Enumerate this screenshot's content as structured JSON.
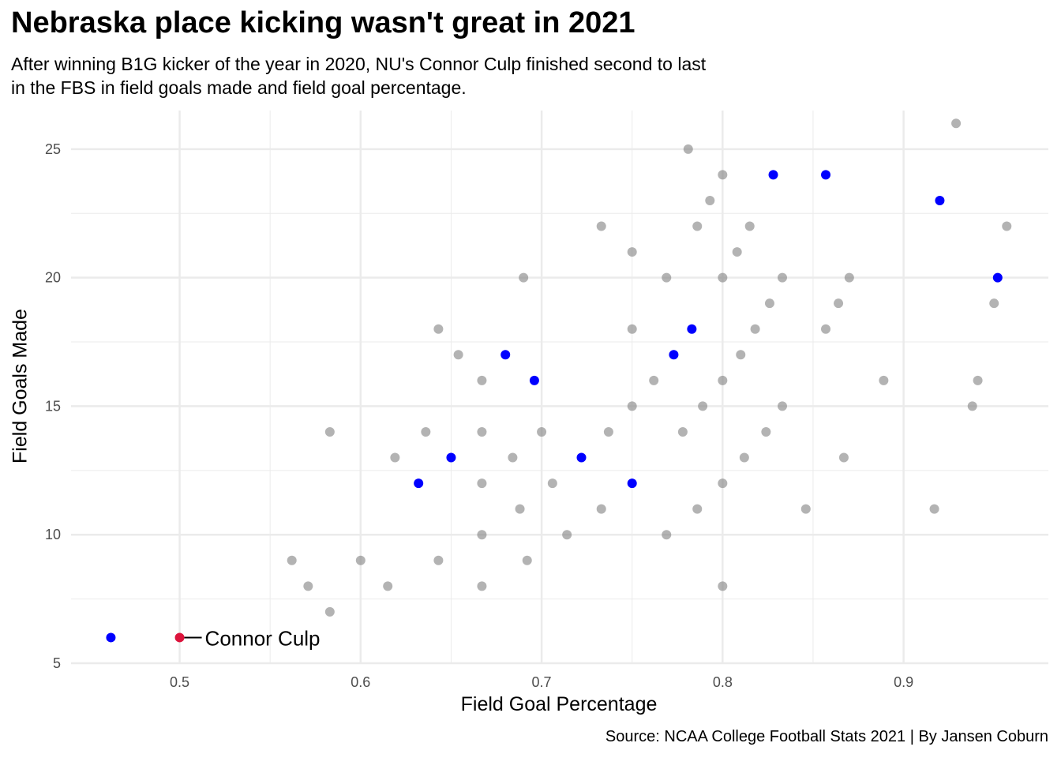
{
  "chart_data": {
    "type": "scatter",
    "title": "Nebraska place kicking wasn't great in 2021",
    "subtitle": "After winning B1G kicker of the year in 2020, NU's Connor Culp finished second to last\nin the FBS in field goals made and field goal percentage.",
    "caption": "Source: NCAA College Football Stats 2021 | By Jansen Coburn",
    "xlabel": "Field Goal Percentage",
    "ylabel": "Field Goals Made",
    "xlim": [
      0.44,
      0.98
    ],
    "ylim": [
      5,
      26.5
    ],
    "xticks": [
      0.5,
      0.6,
      0.7,
      0.8,
      0.9
    ],
    "xtick_labels": [
      "0.5",
      "0.6",
      "0.7",
      "0.8",
      "0.9"
    ],
    "yticks": [
      5,
      10,
      15,
      20,
      25
    ],
    "ytick_labels": [
      "5",
      "10",
      "15",
      "20",
      "25"
    ],
    "grid": true,
    "colors": {
      "other": "#808080",
      "b1g": "#0000ff",
      "highlight": "#dc143c",
      "grid": "#ebebeb"
    },
    "series": [
      {
        "group": "other",
        "points": [
          [
            0.929,
            26
          ],
          [
            0.781,
            25
          ],
          [
            0.8,
            24
          ],
          [
            0.793,
            23
          ],
          [
            0.733,
            22
          ],
          [
            0.786,
            22
          ],
          [
            0.815,
            22
          ],
          [
            0.957,
            22
          ],
          [
            0.75,
            21
          ],
          [
            0.808,
            21
          ],
          [
            0.69,
            20
          ],
          [
            0.769,
            20
          ],
          [
            0.8,
            20
          ],
          [
            0.833,
            20
          ],
          [
            0.87,
            20
          ],
          [
            0.826,
            19
          ],
          [
            0.864,
            19
          ],
          [
            0.95,
            19
          ],
          [
            0.643,
            18
          ],
          [
            0.75,
            18
          ],
          [
            0.818,
            18
          ],
          [
            0.857,
            18
          ],
          [
            0.654,
            17
          ],
          [
            0.81,
            17
          ],
          [
            0.667,
            16
          ],
          [
            0.762,
            16
          ],
          [
            0.8,
            16
          ],
          [
            0.889,
            16
          ],
          [
            0.941,
            16
          ],
          [
            0.75,
            15
          ],
          [
            0.789,
            15
          ],
          [
            0.833,
            15
          ],
          [
            0.938,
            15
          ],
          [
            0.583,
            14
          ],
          [
            0.636,
            14
          ],
          [
            0.667,
            14
          ],
          [
            0.7,
            14
          ],
          [
            0.737,
            14
          ],
          [
            0.778,
            14
          ],
          [
            0.824,
            14
          ],
          [
            0.619,
            13
          ],
          [
            0.684,
            13
          ],
          [
            0.812,
            13
          ],
          [
            0.867,
            13
          ],
          [
            0.667,
            12
          ],
          [
            0.706,
            12
          ],
          [
            0.8,
            12
          ],
          [
            0.688,
            11
          ],
          [
            0.733,
            11
          ],
          [
            0.786,
            11
          ],
          [
            0.846,
            11
          ],
          [
            0.917,
            11
          ],
          [
            0.667,
            10
          ],
          [
            0.714,
            10
          ],
          [
            0.769,
            10
          ],
          [
            0.562,
            9
          ],
          [
            0.6,
            9
          ],
          [
            0.643,
            9
          ],
          [
            0.692,
            9
          ],
          [
            0.571,
            8
          ],
          [
            0.615,
            8
          ],
          [
            0.667,
            8
          ],
          [
            0.8,
            8
          ],
          [
            0.583,
            7
          ]
        ]
      },
      {
        "group": "b1g",
        "points": [
          [
            0.828,
            24
          ],
          [
            0.857,
            24
          ],
          [
            0.92,
            23
          ],
          [
            0.952,
            20
          ],
          [
            0.783,
            18
          ],
          [
            0.68,
            17
          ],
          [
            0.773,
            17
          ],
          [
            0.696,
            16
          ],
          [
            0.65,
            13
          ],
          [
            0.722,
            13
          ],
          [
            0.632,
            12
          ],
          [
            0.75,
            12
          ],
          [
            0.462,
            6
          ]
        ]
      },
      {
        "group": "highlight",
        "points": [
          [
            0.5,
            6
          ]
        ]
      }
    ],
    "annotation": {
      "label": "Connor Culp",
      "x": 0.5,
      "y": 6
    }
  }
}
